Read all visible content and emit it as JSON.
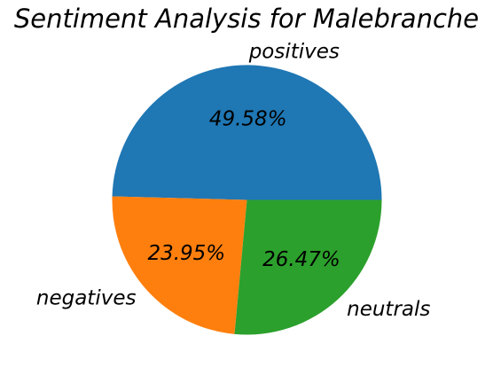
{
  "chart_data": {
    "type": "pie",
    "title": "Sentiment Analysis for Malebranche",
    "labels": [
      "positives",
      "negatives",
      "neutrals"
    ],
    "values": [
      49.58,
      23.95,
      26.47
    ],
    "value_labels": [
      "49.58%",
      "23.95%",
      "26.47%"
    ],
    "colors": [
      "#1f77b4",
      "#ff7f0e",
      "#2ca02c"
    ],
    "start_angle_deg": 0,
    "direction": "counterclockwise",
    "legend": "none",
    "grid": false
  }
}
